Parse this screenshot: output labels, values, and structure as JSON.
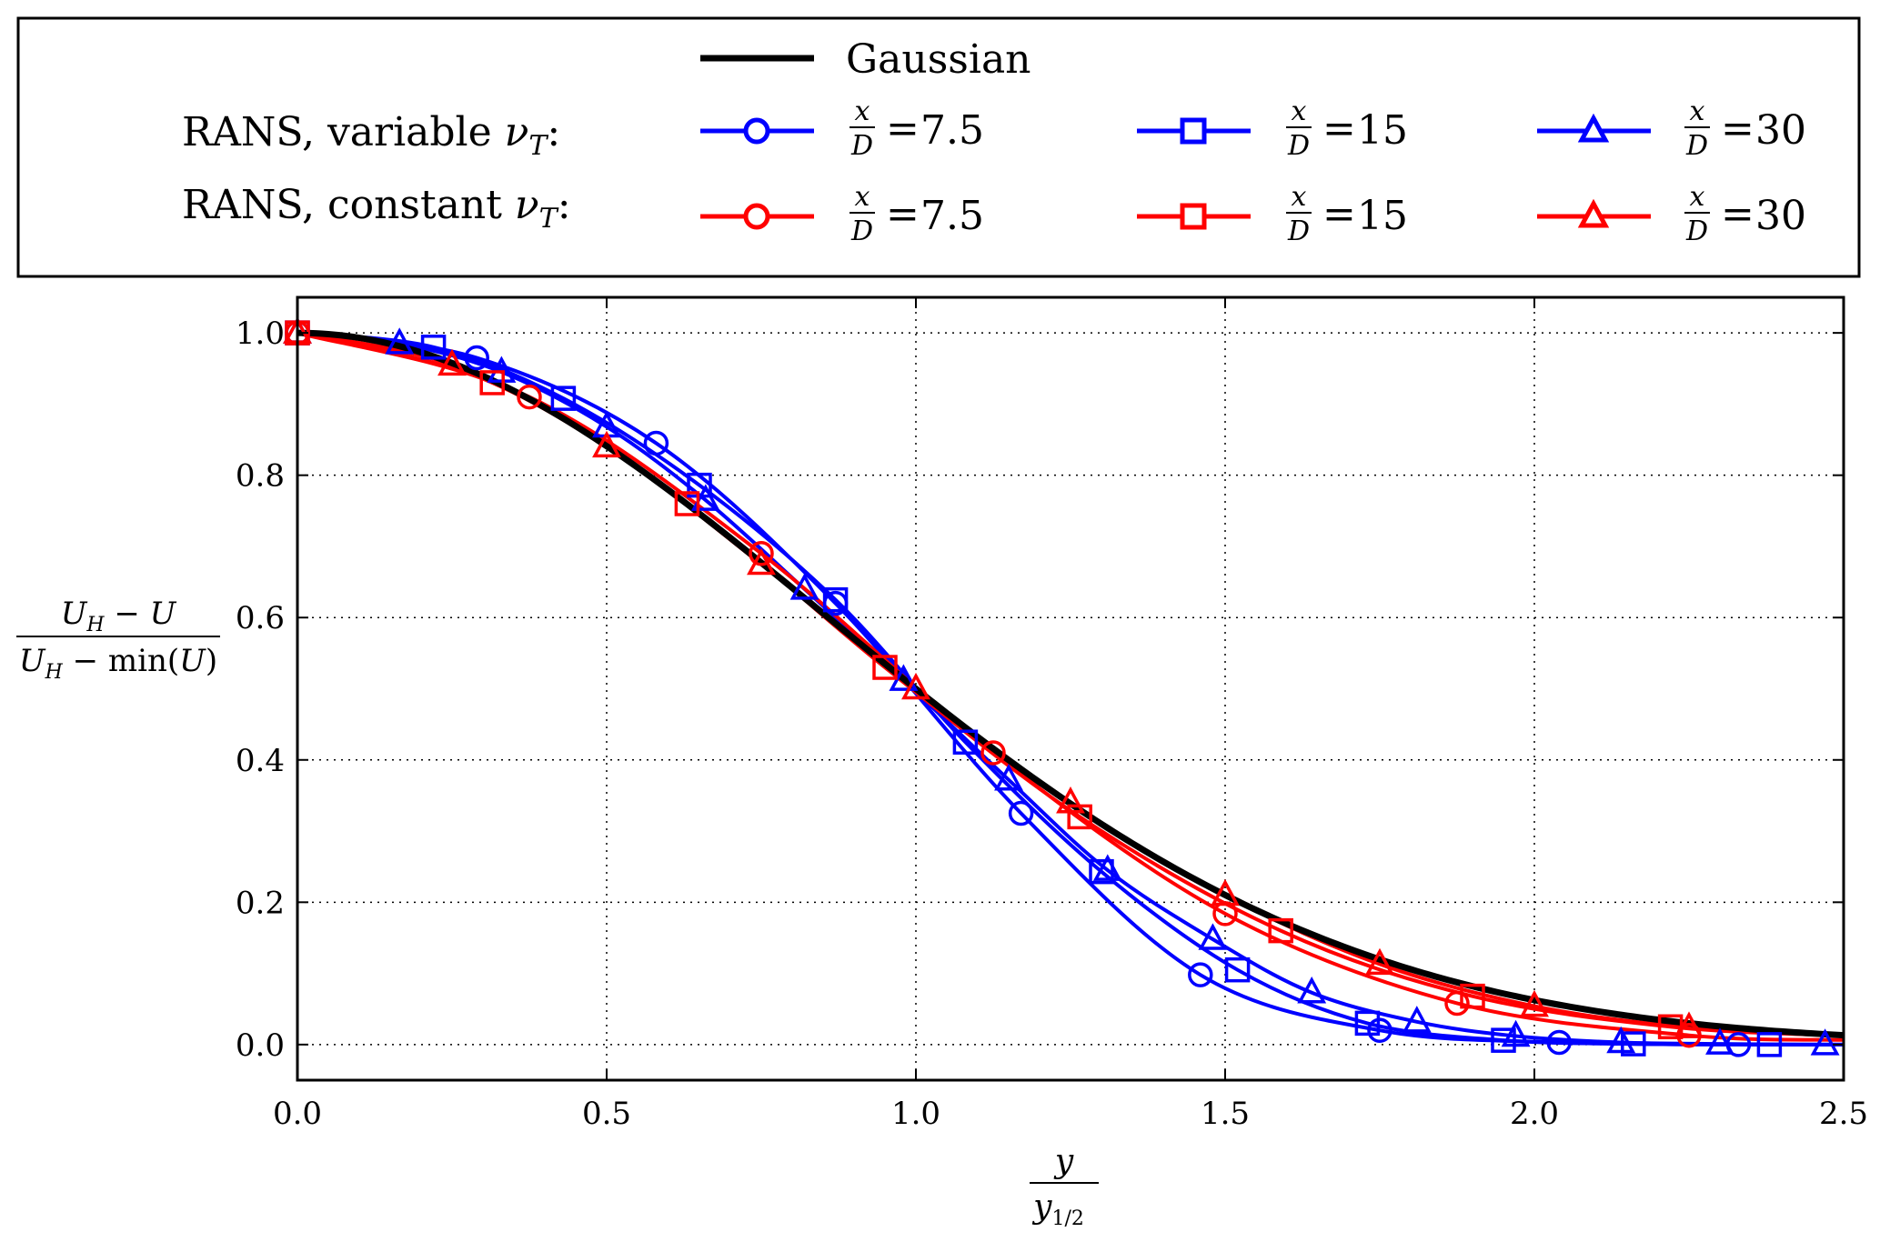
{
  "legend": {
    "gaussian_label": "Gaussian",
    "row_variable_label": "RANS, variable ",
    "row_constant_label": "RANS, constant ",
    "nu_symbol": "ν",
    "nu_subscript": "T",
    "colon": ":",
    "frac_num": "x",
    "frac_den": "D",
    "equals": "=",
    "entries_variable": [
      "7.5",
      "15",
      "30"
    ],
    "entries_constant": [
      "7.5",
      "15",
      "30"
    ]
  },
  "axes": {
    "ylabel": {
      "num": "U",
      "num_sub": "H",
      "num_rest": " − U",
      "den": "U",
      "den_sub": "H",
      "den_rest": " − min(",
      "den_inner": "U",
      "den_close": ")"
    },
    "xlabel": {
      "num": "y",
      "den": "y",
      "den_sub": "1/2"
    }
  },
  "chart_data": {
    "type": "line",
    "title": "",
    "xlim": [
      0.0,
      2.5
    ],
    "ylim": [
      -0.05,
      1.05
    ],
    "x_ticks": [
      "0.0",
      "0.5",
      "1.0",
      "1.5",
      "2.0",
      "2.5"
    ],
    "y_ticks": [
      "0.0",
      "0.2",
      "0.4",
      "0.6",
      "0.8",
      "1.0"
    ],
    "x_tick_values": [
      0.0,
      0.5,
      1.0,
      1.5,
      2.0,
      2.5
    ],
    "y_tick_values": [
      0.0,
      0.2,
      0.4,
      0.6,
      0.8,
      1.0
    ],
    "grid": true,
    "legend_position": "above plot",
    "colors": {
      "gaussian": "#000000",
      "variable": "#0000ff",
      "constant": "#ff0000"
    },
    "gaussian": {
      "name": "Gaussian",
      "formula": "exp(-ln2 * x^2)"
    },
    "series": [
      {
        "name": "RANS, variable νT: x/D = 7.5",
        "group": "variable",
        "marker": "circle",
        "x": [
          0.0,
          0.29,
          0.58,
          0.87,
          1.17,
          1.46,
          1.75,
          2.04,
          2.33
        ],
        "y": [
          1.0,
          0.965,
          0.845,
          0.62,
          0.325,
          0.098,
          0.02,
          0.003,
          0.0
        ]
      },
      {
        "name": "RANS, variable νT: x/D = 15",
        "group": "variable",
        "marker": "square",
        "x": [
          0.0,
          0.22,
          0.43,
          0.65,
          0.87,
          1.08,
          1.3,
          1.52,
          1.73,
          1.95,
          2.16,
          2.38
        ],
        "y": [
          1.0,
          0.98,
          0.908,
          0.786,
          0.625,
          0.425,
          0.243,
          0.105,
          0.03,
          0.006,
          0.001,
          0.0
        ]
      },
      {
        "name": "RANS, variable νT: x/D = 30",
        "group": "variable",
        "marker": "triangle",
        "x": [
          0.0,
          0.165,
          0.33,
          0.5,
          0.66,
          0.82,
          0.98,
          1.15,
          1.31,
          1.48,
          1.64,
          1.81,
          1.97,
          2.14,
          2.3,
          2.47
        ],
        "y": [
          1.0,
          0.985,
          0.945,
          0.868,
          0.765,
          0.64,
          0.512,
          0.372,
          0.245,
          0.148,
          0.073,
          0.032,
          0.012,
          0.003,
          0.001,
          0.0
        ]
      },
      {
        "name": "RANS, constant νT: x/D = 7.5",
        "group": "constant",
        "marker": "circle",
        "x": [
          0.0,
          0.375,
          0.75,
          1.125,
          1.5,
          1.875,
          2.25
        ],
        "y": [
          1.0,
          0.91,
          0.69,
          0.41,
          0.184,
          0.058,
          0.013
        ]
      },
      {
        "name": "RANS, constant νT: x/D = 15",
        "group": "constant",
        "marker": "square",
        "x": [
          0.0,
          0.315,
          0.63,
          0.95,
          1.265,
          1.59,
          1.9,
          2.22
        ],
        "y": [
          1.0,
          0.93,
          0.76,
          0.53,
          0.32,
          0.16,
          0.068,
          0.025
        ]
      },
      {
        "name": "RANS, constant νT: x/D = 30",
        "group": "constant",
        "marker": "triangle",
        "x": [
          0.0,
          0.25,
          0.5,
          0.75,
          1.0,
          1.25,
          1.5,
          1.75,
          2.0,
          2.25
        ],
        "y": [
          1.0,
          0.955,
          0.84,
          0.675,
          0.5,
          0.34,
          0.21,
          0.113,
          0.054,
          0.024
        ]
      }
    ]
  }
}
